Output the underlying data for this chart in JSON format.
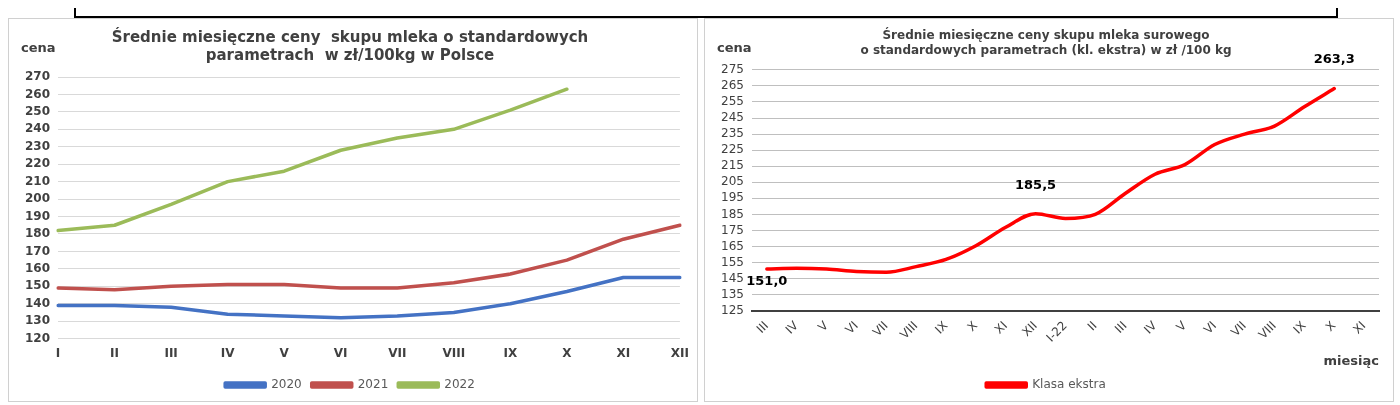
{
  "chart_data": [
    {
      "type": "line",
      "title": [
        "Średnie miesięczne ceny  skupu mleka o standardowych",
        "parametrach  w zł/100kg w Polsce"
      ],
      "ylabel": "cena",
      "categories": [
        "I",
        "II",
        "III",
        "IV",
        "V",
        "VI",
        "VII",
        "VIII",
        "IX",
        "X",
        "XI",
        "XII"
      ],
      "series": [
        {
          "name": "2020",
          "color": "#4472c4",
          "values": [
            139,
            139,
            138,
            134,
            133,
            132,
            133,
            135,
            140,
            147,
            155,
            155
          ]
        },
        {
          "name": "2021",
          "color": "#c0504d",
          "values": [
            149,
            148,
            150,
            151,
            151,
            149,
            149,
            152,
            157,
            165,
            177,
            185
          ]
        },
        {
          "name": "2022",
          "color": "#9bbb59",
          "values": [
            182,
            185,
            197,
            210,
            216,
            228,
            235,
            240,
            251,
            263,
            null,
            null
          ]
        }
      ],
      "ylim": [
        120,
        270
      ],
      "yticks": [
        120,
        130,
        140,
        150,
        160,
        170,
        180,
        190,
        200,
        210,
        220,
        230,
        240,
        250,
        260,
        270
      ],
      "grid": "y",
      "legend": "bottom",
      "marker": "none",
      "line_style": "solid"
    },
    {
      "type": "line",
      "title": [
        "Średnie miesięczne ceny skupu mleka surowego",
        "o standardowych parametrach (kl. ekstra) w zł /100 kg"
      ],
      "ylabel": "cena",
      "xlabel": "miesiąc",
      "categories": [
        "III",
        "IV",
        "V",
        "VI",
        "VII",
        "VIII",
        "IX",
        "X",
        "XI",
        "XII",
        "I-22",
        "II",
        "III",
        "IV",
        "V",
        "VI",
        "VII",
        "VIII",
        "IX",
        "X",
        "XI"
      ],
      "series": [
        {
          "name": "Klasa ekstra",
          "color": "#ff0000",
          "values": [
            151.0,
            151.5,
            151,
            149.5,
            149,
            152.5,
            157,
            165.5,
            177,
            185.5,
            182.5,
            185,
            198,
            210,
            216,
            228.5,
            235,
            240,
            252,
            263.3,
            null
          ],
          "value_labels": [
            "151,0",
            null,
            null,
            null,
            null,
            null,
            null,
            null,
            null,
            "185,5",
            null,
            null,
            null,
            null,
            null,
            null,
            null,
            null,
            null,
            "263,3",
            null
          ]
        }
      ],
      "ylim": [
        125,
        275
      ],
      "yticks": [
        125,
        135,
        145,
        155,
        165,
        175,
        185,
        195,
        205,
        215,
        225,
        235,
        245,
        255,
        265,
        275
      ],
      "grid": "y",
      "legend": "bottom",
      "marker": "none",
      "line_style": "solid"
    }
  ]
}
